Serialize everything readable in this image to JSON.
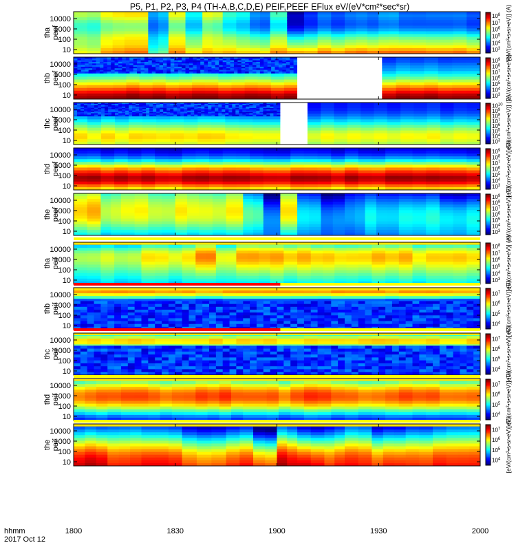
{
  "figure": {
    "title": "P5, P1, P2, P3, P4 (TH-A,B,C,D,E) PEIF,PEEF EFlux eV/(eV*cm²*sec*sr)",
    "time_axis": {
      "row_label": "hhmm",
      "date_label": "2017 Oct 12",
      "tick_labels": [
        "1800",
        "1830",
        "1900",
        "1930",
        "2000"
      ],
      "tick_values_min": [
        0,
        30,
        60,
        90,
        120
      ]
    }
  },
  "chart_data": [
    {
      "type": "heatmap",
      "label_line1": "tha",
      "label_line2": "peef",
      "y_ticks": [
        "10000",
        "1000",
        "100",
        "10"
      ],
      "yscale": "log",
      "colorbar_exponents": [
        3,
        4,
        5,
        6,
        7,
        8
      ],
      "colorbar_label": "[eV/(cm²•s•sr•eV)] (A)",
      "profile": [
        0,
        0.06,
        0.05,
        0.06,
        0.12,
        0.25,
        0.4,
        0.5,
        0.58,
        0.72,
        0.86
      ],
      "blocks": [
        [
          0,
          8,
          0.55,
          0.72
        ],
        [
          8,
          15,
          0.62,
          0.85
        ],
        [
          15,
          22,
          0.65,
          0.9
        ],
        [
          22,
          28,
          0.3,
          0.55
        ],
        [
          28,
          33,
          0.6,
          0.88
        ],
        [
          33,
          38,
          0.35,
          0.75
        ],
        [
          38,
          44,
          0.6,
          0.82
        ],
        [
          44,
          52,
          0.4,
          0.82
        ],
        [
          52,
          58,
          0.25,
          0.8
        ],
        [
          58,
          63,
          0.45,
          0.92
        ],
        [
          63,
          68,
          0.0,
          0.85
        ],
        [
          68,
          72,
          0.12,
          0.82
        ],
        [
          72,
          80,
          0.2,
          0.9
        ],
        [
          80,
          90,
          0.22,
          0.92
        ],
        [
          90,
          96,
          0.28,
          0.95
        ],
        [
          96,
          104,
          0.18,
          0.92
        ],
        [
          104,
          112,
          0.22,
          0.93
        ],
        [
          112,
          120,
          0.2,
          0.92
        ]
      ]
    },
    {
      "type": "heatmap",
      "label_line1": "thb",
      "label_line2": "peef",
      "y_ticks": [
        "10000",
        "1000",
        "100",
        "10"
      ],
      "yscale": "log",
      "colorbar_exponents": [
        3,
        4,
        5,
        6,
        7,
        8,
        9
      ],
      "colorbar_label": "[eV/(cm²•s•sr•eV)]",
      "profile": [
        0.18,
        0.2,
        0.26,
        0.3,
        0.38,
        0.48,
        0.6,
        0.72,
        0.84,
        0.95,
        1.0
      ],
      "noise_band": [
        0.0,
        0.38,
        0,
        66
      ],
      "gaps": [
        [
          66,
          91
        ]
      ],
      "blocks": [
        [
          0,
          66,
          0,
          1
        ],
        [
          91,
          120,
          0,
          1
        ]
      ]
    },
    {
      "type": "heatmap",
      "label_line1": "thc",
      "label_line2": "peef",
      "y_ticks": [
        "10000",
        "1000",
        "100",
        "10"
      ],
      "yscale": "log",
      "colorbar_exponents": [
        3,
        4,
        5,
        6,
        7,
        8,
        9,
        10
      ],
      "colorbar_label": "[eV/(cm²•s•sr•eV)] (C)",
      "profile": [
        0.15,
        0.16,
        0.18,
        0.24,
        0.32,
        0.42,
        0.52,
        0.6,
        0.66,
        0.62,
        0.56
      ],
      "noise_band": [
        0.0,
        0.32,
        0,
        61
      ],
      "gaps": [
        [
          61,
          69
        ]
      ],
      "blocks": [
        [
          0,
          61,
          0,
          1
        ],
        [
          69,
          120,
          0,
          0.95
        ]
      ]
    },
    {
      "type": "heatmap",
      "label_line1": "thd",
      "label_line2": "peef",
      "y_ticks": [
        "10000",
        "1000",
        "100",
        "10"
      ],
      "yscale": "log",
      "colorbar_exponents": [
        3,
        4,
        5,
        6,
        7,
        8,
        9
      ],
      "colorbar_label": "[eV/(cm²•s•sr•eV)] (D)",
      "profile": [
        0.08,
        0.12,
        0.2,
        0.35,
        0.55,
        0.72,
        0.86,
        0.95,
        0.92,
        0.75,
        0.6
      ],
      "blocks": [
        [
          0,
          120,
          0,
          1
        ]
      ]
    },
    {
      "type": "heatmap",
      "label_line1": "the",
      "label_line2": "peef",
      "y_ticks": [
        "10000",
        "1000",
        "100",
        "10"
      ],
      "yscale": "log",
      "colorbar_exponents": [
        3,
        4,
        5,
        6,
        7,
        8,
        9
      ],
      "colorbar_label": "[eV/(cm²•s•sr•eV)] (E)",
      "profile": [
        0.55,
        0.62,
        0.68,
        0.72,
        0.75,
        0.74,
        0.72,
        0.66,
        0.58,
        0.5,
        0.42
      ],
      "blocks": [
        [
          0,
          8,
          0.05,
          0.88
        ],
        [
          8,
          14,
          0.0,
          0.78
        ],
        [
          14,
          22,
          0.05,
          0.82
        ],
        [
          22,
          30,
          0.0,
          0.78
        ],
        [
          30,
          37,
          0.05,
          0.82
        ],
        [
          37,
          45,
          0.0,
          0.8
        ],
        [
          45,
          50,
          0.05,
          0.82
        ],
        [
          50,
          56,
          -0.15,
          0.75
        ],
        [
          56,
          61,
          -0.35,
          0.55
        ],
        [
          61,
          66,
          0.05,
          0.85
        ],
        [
          66,
          73,
          -0.2,
          0.62
        ],
        [
          73,
          80,
          -0.3,
          0.55
        ],
        [
          80,
          86,
          -0.15,
          0.5
        ],
        [
          86,
          96,
          -0.2,
          0.62
        ],
        [
          96,
          108,
          -0.25,
          0.68
        ],
        [
          108,
          120,
          -0.35,
          0.72
        ]
      ]
    },
    {
      "type": "heatmap",
      "label_line1": "tha",
      "label_line2": "peif",
      "y_ticks": [
        "10000",
        "1000",
        "100",
        "10"
      ],
      "yscale": "log",
      "colorbar_exponents": [
        3,
        4,
        5,
        6,
        7,
        8
      ],
      "colorbar_label": "[eV/(cm²•s•sr•eV)] (A)",
      "profile": [
        0.25,
        0.4,
        0.55,
        0.62,
        0.64,
        0.6,
        0.55,
        0.5,
        0.45,
        0.4,
        0.35
      ],
      "top_band": [
        0.0,
        0.06
      ],
      "blocks": [
        [
          0,
          20,
          0.0,
          0.9
        ],
        [
          20,
          36,
          0.05,
          0.95
        ],
        [
          36,
          42,
          0.18,
          1.05
        ],
        [
          42,
          48,
          0.0,
          0.95
        ],
        [
          48,
          58,
          0.15,
          1.0
        ],
        [
          58,
          70,
          0.1,
          1.0
        ],
        [
          70,
          84,
          0.05,
          1.0
        ],
        [
          84,
          100,
          0.1,
          1.0
        ],
        [
          100,
          120,
          0.05,
          1.0
        ]
      ]
    },
    {
      "type": "heatmap",
      "label_line1": "thb",
      "label_line2": "peif",
      "y_ticks": [
        "10000",
        "1000",
        "100",
        "10"
      ],
      "yscale": "log",
      "colorbar_exponents": [
        4,
        5,
        6,
        7
      ],
      "colorbar_label": "[eV/(cm²•s•sr•eV)] (B)",
      "profile": [
        0.6,
        0.72,
        0.55,
        0.2,
        0.1,
        0.08,
        0.07,
        0.06,
        0.06,
        0.05,
        0.05
      ],
      "noise_band": [
        0.32,
        1.0,
        0,
        120
      ],
      "top_band": [
        0.0,
        0.05
      ],
      "red_top_until": 61,
      "blocks": [
        [
          0,
          120,
          0,
          1
        ]
      ]
    },
    {
      "type": "heatmap",
      "label_line1": "thc",
      "label_line2": "peif",
      "y_ticks": [
        "10000",
        "1000",
        "100",
        "10"
      ],
      "yscale": "log",
      "colorbar_exponents": [
        4,
        5,
        6,
        7
      ],
      "colorbar_label": "[eV/(cm²•s•sr•eV)] (C)",
      "profile": [
        0.35,
        0.55,
        0.72,
        0.5,
        0.18,
        0.1,
        0.08,
        0.07,
        0.06,
        0.06,
        0.05
      ],
      "noise_band": [
        0.3,
        1.0,
        0,
        120
      ],
      "top_band": [
        0.0,
        0.05
      ],
      "red_top_until": 61,
      "blocks": [
        [
          0,
          120,
          0,
          1
        ]
      ]
    },
    {
      "type": "heatmap",
      "label_line1": "thd",
      "label_line2": "peif",
      "y_ticks": [
        "10000",
        "1000",
        "100",
        "10"
      ],
      "yscale": "log",
      "colorbar_exponents": [
        4,
        5,
        6,
        7
      ],
      "colorbar_label": "[eV/(cm²•s•sr•eV)] (D)",
      "profile": [
        0.3,
        0.48,
        0.62,
        0.72,
        0.78,
        0.76,
        0.68,
        0.55,
        0.4,
        0.25,
        0.15
      ],
      "top_band": [
        0.0,
        0.06
      ],
      "blocks": [
        [
          0,
          10,
          0.0,
          1.0
        ],
        [
          10,
          22,
          0.05,
          1.02
        ],
        [
          22,
          36,
          0.0,
          1.0
        ],
        [
          36,
          50,
          0.05,
          1.02
        ],
        [
          50,
          64,
          0.0,
          1.0
        ],
        [
          64,
          80,
          0.05,
          1.02
        ],
        [
          80,
          96,
          0.0,
          1.0
        ],
        [
          96,
          108,
          0.05,
          1.02
        ],
        [
          108,
          120,
          0.0,
          1.0
        ]
      ]
    },
    {
      "type": "heatmap",
      "label_line1": "the",
      "label_line2": "peif",
      "y_ticks": [
        "10000",
        "1000",
        "100",
        "10"
      ],
      "yscale": "log",
      "colorbar_exponents": [
        4,
        5,
        6,
        7
      ],
      "colorbar_label": "[eV/(cm²•s•sr•eV)] (E)",
      "profile": [
        0.25,
        0.32,
        0.4,
        0.5,
        0.6,
        0.7,
        0.78,
        0.85,
        0.9,
        0.92,
        0.95
      ],
      "top_band": [
        0.0,
        0.06
      ],
      "blocks": [
        [
          0,
          10,
          -0.1,
          1.0
        ],
        [
          10,
          20,
          -0.05,
          0.9
        ],
        [
          20,
          32,
          -0.1,
          0.95
        ],
        [
          32,
          45,
          -0.2,
          0.85
        ],
        [
          45,
          53,
          -0.15,
          0.9
        ],
        [
          53,
          60,
          -0.35,
          0.85
        ],
        [
          60,
          66,
          -0.1,
          1.0
        ],
        [
          66,
          74,
          -0.25,
          0.95
        ],
        [
          74,
          80,
          -0.15,
          0.9
        ],
        [
          80,
          88,
          -0.05,
          0.92
        ],
        [
          88,
          98,
          -0.2,
          0.88
        ],
        [
          98,
          110,
          -0.1,
          0.9
        ],
        [
          110,
          120,
          -0.05,
          0.88
        ]
      ]
    }
  ]
}
